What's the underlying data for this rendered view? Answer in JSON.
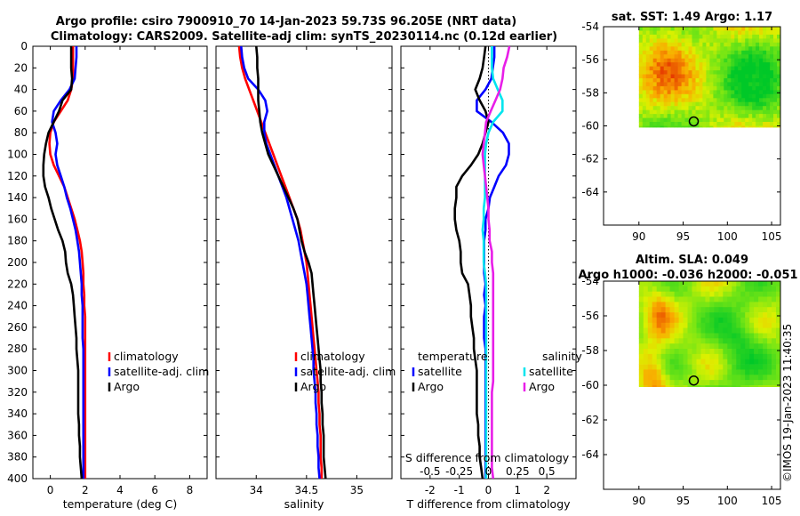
{
  "title_line1": "Argo profile: csiro 7900910_70 14-Jan-2023 59.73S 96.205E (NRT data)",
  "title_line2": "Climatology: CARS2009. Satellite-adj clim: synTS_20230114.nc (0.12d earlier)",
  "watermark": "©IMOS 19-Jan-2023 11:40:35",
  "colors": {
    "climatology": "#ff0000",
    "satellite": "#0000ff",
    "argo": "#000000",
    "sat_salinity": "#00e5ee",
    "argo_salinity": "#e81ee8"
  },
  "depth_ticks": [
    "0",
    "20",
    "40",
    "60",
    "80",
    "100",
    "120",
    "140",
    "160",
    "180",
    "200",
    "220",
    "240",
    "260",
    "280",
    "300",
    "320",
    "340",
    "360",
    "380",
    "400"
  ],
  "chart_data": [
    {
      "type": "line",
      "panel": "temperature",
      "xlabel": "temperature (deg C)",
      "xlim": [
        -1,
        9
      ],
      "ylim": [
        400,
        0
      ],
      "x_ticks": [
        "0",
        "2",
        "4",
        "6",
        "8"
      ],
      "x_tick_values": [
        0,
        2,
        4,
        6,
        8
      ],
      "legend": [
        "climatology",
        "satellite-adj. clim",
        "Argo"
      ],
      "depth": [
        0,
        10,
        20,
        30,
        40,
        50,
        60,
        70,
        80,
        90,
        100,
        110,
        120,
        130,
        140,
        150,
        160,
        170,
        180,
        190,
        200,
        210,
        220,
        230,
        240,
        250,
        260,
        270,
        280,
        290,
        300,
        310,
        320,
        330,
        340,
        350,
        360,
        370,
        380,
        390,
        400
      ],
      "series": [
        {
          "name": "climatology",
          "color": "#ff0000",
          "values": [
            1.3,
            1.3,
            1.3,
            1.3,
            1.2,
            1.0,
            0.6,
            0.2,
            0.0,
            -0.05,
            0.0,
            0.2,
            0.5,
            0.8,
            1.0,
            1.2,
            1.4,
            1.55,
            1.7,
            1.8,
            1.85,
            1.9,
            1.9,
            1.95,
            1.95,
            2.0,
            2.0,
            2.0,
            2.0,
            2.0,
            2.0,
            2.0,
            2.0,
            2.0,
            2.0,
            2.0,
            2.0,
            2.0,
            2.0,
            2.0,
            2.0
          ]
        },
        {
          "name": "satellite-adj. clim",
          "color": "#0000ff",
          "values": [
            1.5,
            1.5,
            1.45,
            1.4,
            1.1,
            0.6,
            0.2,
            0.1,
            0.3,
            0.4,
            0.3,
            0.4,
            0.6,
            0.8,
            0.95,
            1.15,
            1.3,
            1.45,
            1.55,
            1.65,
            1.7,
            1.75,
            1.8,
            1.8,
            1.85,
            1.85,
            1.85,
            1.85,
            1.9,
            1.9,
            1.9,
            1.9,
            1.9,
            1.9,
            1.9,
            1.9,
            1.9,
            1.9,
            1.9,
            1.9,
            1.9
          ]
        },
        {
          "name": "Argo",
          "color": "#000000",
          "values": [
            1.2,
            1.2,
            1.2,
            1.25,
            1.2,
            0.7,
            0.5,
            0.2,
            -0.1,
            -0.25,
            -0.35,
            -0.4,
            -0.4,
            -0.3,
            -0.1,
            0.05,
            0.25,
            0.45,
            0.7,
            0.85,
            0.9,
            1.0,
            1.2,
            1.3,
            1.35,
            1.4,
            1.45,
            1.5,
            1.5,
            1.55,
            1.6,
            1.6,
            1.6,
            1.6,
            1.6,
            1.65,
            1.65,
            1.7,
            1.7,
            1.75,
            1.8
          ]
        }
      ]
    },
    {
      "type": "line",
      "panel": "salinity",
      "xlabel": "salinity",
      "xlim": [
        33.6,
        35.35
      ],
      "ylim": [
        400,
        0
      ],
      "x_ticks": [
        "34",
        "34.5",
        "35"
      ],
      "x_tick_values": [
        34,
        34.5,
        35
      ],
      "legend": [
        "climatology",
        "satellite-adj. clim",
        "Argo"
      ],
      "depth": [
        0,
        10,
        20,
        30,
        40,
        50,
        60,
        70,
        80,
        90,
        100,
        110,
        120,
        130,
        140,
        150,
        160,
        170,
        180,
        190,
        200,
        210,
        220,
        230,
        240,
        250,
        260,
        270,
        280,
        290,
        300,
        310,
        320,
        330,
        340,
        350,
        360,
        370,
        380,
        390,
        400
      ],
      "series": [
        {
          "name": "climatology",
          "color": "#ff0000",
          "values": [
            33.83,
            33.84,
            33.86,
            33.89,
            33.93,
            33.97,
            34.01,
            34.05,
            34.09,
            34.13,
            34.17,
            34.21,
            34.25,
            34.29,
            34.33,
            34.37,
            34.41,
            34.44,
            34.46,
            34.48,
            34.5,
            34.51,
            34.52,
            34.53,
            34.54,
            34.55,
            34.56,
            34.57,
            34.58,
            34.59,
            34.6,
            34.61,
            34.62,
            34.62,
            34.63,
            34.63,
            34.64,
            34.64,
            34.64,
            34.65,
            34.65
          ]
        },
        {
          "name": "satellite-adj. clim",
          "color": "#0000ff",
          "values": [
            33.85,
            33.86,
            33.88,
            33.92,
            34.02,
            34.09,
            34.11,
            34.08,
            34.08,
            34.1,
            34.14,
            34.18,
            34.22,
            34.26,
            34.3,
            34.33,
            34.36,
            34.39,
            34.42,
            34.44,
            34.46,
            34.48,
            34.5,
            34.51,
            34.52,
            34.53,
            34.54,
            34.55,
            34.56,
            34.57,
            34.57,
            34.58,
            34.59,
            34.59,
            34.6,
            34.6,
            34.61,
            34.61,
            34.62,
            34.62,
            34.63
          ]
        },
        {
          "name": "Argo",
          "color": "#000000",
          "values": [
            34.0,
            34.01,
            34.01,
            34.02,
            34.02,
            34.02,
            34.03,
            34.04,
            34.06,
            34.09,
            34.12,
            34.17,
            34.22,
            34.27,
            34.32,
            34.37,
            34.41,
            34.43,
            34.45,
            34.48,
            34.52,
            34.55,
            34.56,
            34.57,
            34.58,
            34.59,
            34.6,
            34.61,
            34.62,
            34.63,
            34.64,
            34.64,
            34.65,
            34.65,
            34.66,
            34.66,
            34.67,
            34.67,
            34.67,
            34.68,
            34.69
          ]
        }
      ]
    },
    {
      "type": "line",
      "panel": "difference",
      "xlabel": "T difference from climatology",
      "xlabel_top": "S difference from climatology",
      "xlim": [
        -3,
        3
      ],
      "ylim": [
        400,
        0
      ],
      "x_ticks": [
        "-2",
        "-1",
        "0",
        "1",
        "2"
      ],
      "x_tick_values": [
        -2,
        -1,
        0,
        1,
        2
      ],
      "s_ticks": [
        "-0.5",
        "-0.25",
        "0",
        "0.25",
        "0.5"
      ],
      "s_tick_values": [
        -0.5,
        -0.25,
        0,
        0.25,
        0.5
      ],
      "legend_t": [
        "temperature",
        "satellite",
        "Argo"
      ],
      "legend_s": [
        "salinity",
        "satellite",
        "Argo"
      ],
      "depth": [
        0,
        10,
        20,
        30,
        40,
        50,
        60,
        70,
        80,
        90,
        100,
        110,
        120,
        130,
        140,
        150,
        160,
        170,
        180,
        190,
        200,
        210,
        220,
        230,
        240,
        250,
        260,
        270,
        280,
        290,
        300,
        310,
        320,
        330,
        340,
        350,
        360,
        370,
        380,
        390,
        400
      ],
      "series": [
        {
          "name": "T satellite",
          "color": "#0000ff",
          "values": [
            0.2,
            0.2,
            0.15,
            0.1,
            -0.1,
            -0.4,
            -0.4,
            0.1,
            0.5,
            0.7,
            0.7,
            0.6,
            0.35,
            0.2,
            0.05,
            0.0,
            -0.1,
            -0.1,
            -0.15,
            -0.15,
            -0.15,
            -0.15,
            -0.1,
            -0.15,
            -0.1,
            -0.15,
            -0.15,
            -0.15,
            -0.1,
            -0.1,
            -0.1,
            -0.1,
            -0.1,
            -0.1,
            -0.1,
            -0.1,
            -0.1,
            -0.1,
            -0.1,
            -0.1,
            -0.1
          ]
        },
        {
          "name": "T Argo",
          "color": "#000000",
          "values": [
            -0.1,
            -0.15,
            -0.2,
            -0.3,
            -0.45,
            -0.3,
            -0.1,
            0.0,
            -0.1,
            -0.2,
            -0.35,
            -0.6,
            -0.9,
            -1.1,
            -1.1,
            -1.15,
            -1.15,
            -1.1,
            -1.0,
            -0.95,
            -0.95,
            -0.9,
            -0.7,
            -0.65,
            -0.6,
            -0.6,
            -0.55,
            -0.5,
            -0.5,
            -0.45,
            -0.4,
            -0.4,
            -0.4,
            -0.4,
            -0.4,
            -0.35,
            -0.35,
            -0.3,
            -0.3,
            -0.25,
            -0.2
          ]
        },
        {
          "name": "S satellite",
          "color": "#00e5ee",
          "values": [
            0.03,
            0.03,
            0.03,
            0.04,
            0.08,
            0.12,
            0.12,
            0.04,
            0.0,
            -0.02,
            -0.03,
            -0.03,
            -0.03,
            -0.03,
            -0.03,
            -0.04,
            -0.04,
            -0.05,
            -0.04,
            -0.04,
            -0.04,
            -0.03,
            -0.02,
            -0.02,
            -0.02,
            -0.02,
            -0.02,
            -0.02,
            -0.02,
            -0.02,
            -0.02,
            -0.02,
            -0.02,
            -0.02,
            -0.02,
            -0.02,
            -0.02,
            -0.02,
            -0.02,
            -0.02,
            -0.02
          ]
        },
        {
          "name": "S Argo",
          "color": "#e81ee8",
          "values": [
            0.18,
            0.16,
            0.13,
            0.12,
            0.1,
            0.06,
            0.02,
            -0.02,
            -0.03,
            -0.04,
            -0.05,
            -0.04,
            -0.03,
            -0.02,
            -0.01,
            0.0,
            0.0,
            0.01,
            0.01,
            0.03,
            0.03,
            0.04,
            0.04,
            0.04,
            0.04,
            0.04,
            0.04,
            0.04,
            0.04,
            0.04,
            0.04,
            0.04,
            0.03,
            0.03,
            0.03,
            0.03,
            0.03,
            0.03,
            0.03,
            0.03,
            0.04
          ]
        }
      ]
    },
    {
      "type": "heatmap",
      "panel": "sst-map",
      "title": "sat. SST: 1.49 Argo: 1.17",
      "xlim": [
        86,
        106
      ],
      "ylim": [
        -66,
        -54
      ],
      "x_ticks": [
        "90",
        "95",
        "100",
        "105"
      ],
      "x_tick_values": [
        90,
        95,
        100,
        105
      ],
      "y_ticks": [
        "-54",
        "-56",
        "-58",
        "-60",
        "-62",
        "-64"
      ],
      "y_tick_values": [
        -54,
        -56,
        -58,
        -60,
        -62,
        -64
      ],
      "data_extent": {
        "lon": [
          90,
          106
        ],
        "lat": [
          -60.1,
          -54
        ]
      },
      "argo_position": {
        "lon": 96.2,
        "lat": -59.73
      }
    },
    {
      "type": "heatmap",
      "panel": "sla-map",
      "title_line1": "Altim. SLA: 0.049",
      "title_line2": "Argo h1000: -0.036 h2000: -0.051",
      "xlim": [
        86,
        106
      ],
      "ylim": [
        -66,
        -54
      ],
      "x_ticks": [
        "90",
        "95",
        "100",
        "105"
      ],
      "x_tick_values": [
        90,
        95,
        100,
        105
      ],
      "y_ticks": [
        "-54",
        "-56",
        "-58",
        "-60",
        "-62",
        "-64"
      ],
      "y_tick_values": [
        -54,
        -56,
        -58,
        -60,
        -62,
        -64
      ],
      "data_extent": {
        "lon": [
          90,
          106
        ],
        "lat": [
          -60.1,
          -54
        ]
      },
      "argo_position": {
        "lon": 96.2,
        "lat": -59.73
      }
    }
  ]
}
